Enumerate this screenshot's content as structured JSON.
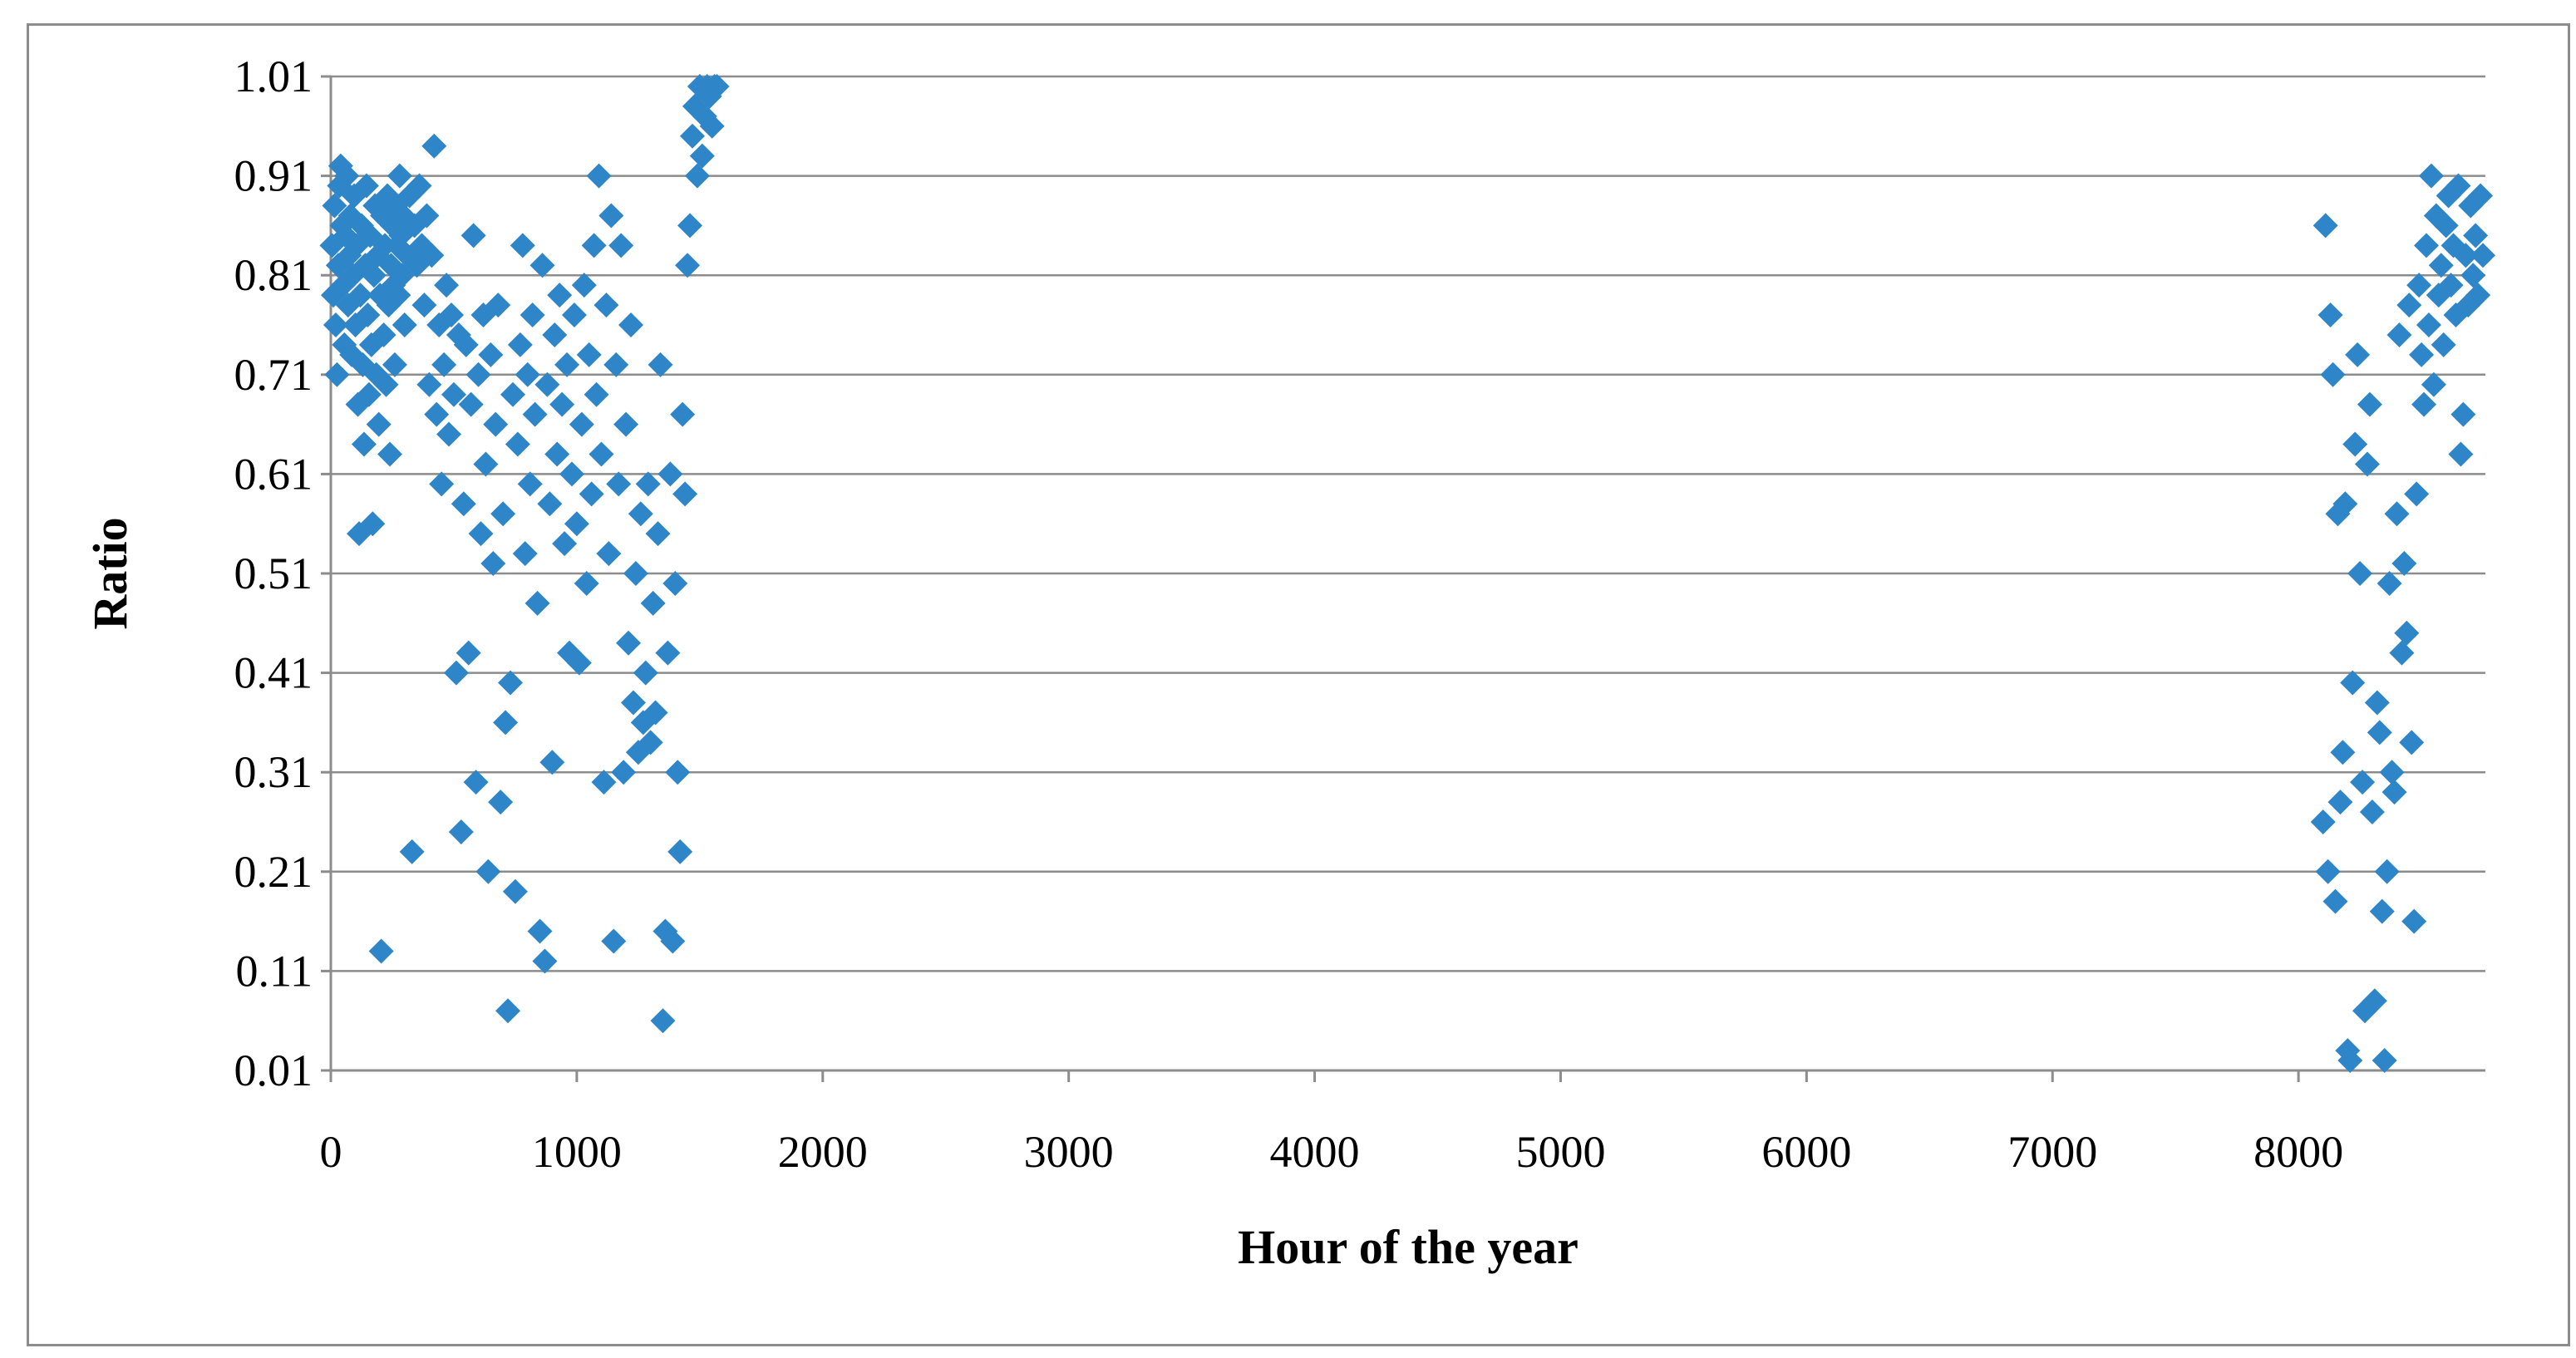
{
  "chart_data": {
    "type": "scatter",
    "xlabel": "Hour of the year",
    "ylabel": "Ratio",
    "xlim": [
      0,
      8760
    ],
    "ylim": [
      0.01,
      1.01
    ],
    "x_ticks": [
      "0",
      "1000",
      "2000",
      "3000",
      "4000",
      "5000",
      "6000",
      "7000",
      "8000"
    ],
    "y_ticks": [
      "0.01",
      "0.11",
      "0.21",
      "0.31",
      "0.41",
      "0.51",
      "0.61",
      "0.71",
      "0.81",
      "0.91",
      "1.01"
    ],
    "grid": "horizontal",
    "legend": "none",
    "marker": "diamond",
    "color": "#2e86c8",
    "series": [
      {
        "points": [
          [
            5,
            0.84
          ],
          [
            10,
            0.79
          ],
          [
            15,
            0.88
          ],
          [
            20,
            0.76
          ],
          [
            25,
            0.71
          ],
          [
            30,
            0.82
          ],
          [
            35,
            0.9
          ],
          [
            40,
            0.92
          ],
          [
            45,
            0.86
          ],
          [
            50,
            0.8
          ],
          [
            55,
            0.74
          ],
          [
            60,
            0.85
          ],
          [
            65,
            0.91
          ],
          [
            70,
            0.78
          ],
          [
            75,
            0.83
          ],
          [
            80,
            0.87
          ],
          [
            85,
            0.73
          ],
          [
            90,
            0.81
          ],
          [
            95,
            0.89
          ],
          [
            100,
            0.76
          ],
          [
            105,
            0.84
          ],
          [
            110,
            0.68
          ],
          [
            115,
            0.55
          ],
          [
            120,
            0.79
          ],
          [
            125,
            0.86
          ],
          [
            130,
            0.72
          ],
          [
            135,
            0.64
          ],
          [
            140,
            0.82
          ],
          [
            145,
            0.9
          ],
          [
            150,
            0.77
          ],
          [
            155,
            0.69
          ],
          [
            160,
            0.85
          ],
          [
            165,
            0.74
          ],
          [
            170,
            0.56
          ],
          [
            175,
            0.81
          ],
          [
            180,
            0.88
          ],
          [
            185,
            0.71
          ],
          [
            190,
            0.83
          ],
          [
            195,
            0.66
          ],
          [
            200,
            0.79
          ],
          [
            205,
            0.13
          ],
          [
            210,
            0.87
          ],
          [
            215,
            0.75
          ],
          [
            220,
            0.84
          ],
          [
            225,
            0.7
          ],
          [
            230,
            0.89
          ],
          [
            235,
            0.78
          ],
          [
            240,
            0.63
          ],
          [
            245,
            0.82
          ],
          [
            250,
            0.86
          ],
          [
            255,
            0.8
          ],
          [
            260,
            0.72
          ],
          [
            265,
            0.88
          ],
          [
            270,
            0.84
          ],
          [
            275,
            0.79
          ],
          [
            280,
            0.91
          ],
          [
            285,
            0.85
          ],
          [
            290,
            0.81
          ],
          [
            295,
            0.87
          ],
          [
            300,
            0.76
          ],
          [
            310,
            0.83
          ],
          [
            320,
            0.89
          ],
          [
            330,
            0.23
          ],
          [
            340,
            0.86
          ],
          [
            350,
            0.82
          ],
          [
            360,
            0.9
          ],
          [
            370,
            0.84
          ],
          [
            380,
            0.78
          ],
          [
            390,
            0.87
          ],
          [
            400,
            0.7
          ],
          [
            410,
            0.83
          ],
          [
            420,
            0.94
          ],
          [
            430,
            0.67
          ],
          [
            440,
            0.76
          ],
          [
            450,
            0.6
          ],
          [
            460,
            0.72
          ],
          [
            470,
            0.8
          ],
          [
            480,
            0.65
          ],
          [
            490,
            0.77
          ],
          [
            500,
            0.69
          ],
          [
            510,
            0.41
          ],
          [
            520,
            0.75
          ],
          [
            530,
            0.25
          ],
          [
            540,
            0.58
          ],
          [
            550,
            0.74
          ],
          [
            560,
            0.43
          ],
          [
            570,
            0.68
          ],
          [
            580,
            0.85
          ],
          [
            590,
            0.3
          ],
          [
            600,
            0.71
          ],
          [
            610,
            0.55
          ],
          [
            620,
            0.77
          ],
          [
            630,
            0.62
          ],
          [
            640,
            0.21
          ],
          [
            650,
            0.73
          ],
          [
            660,
            0.52
          ],
          [
            670,
            0.66
          ],
          [
            680,
            0.78
          ],
          [
            690,
            0.28
          ],
          [
            700,
            0.57
          ],
          [
            710,
            0.36
          ],
          [
            720,
            0.07
          ],
          [
            730,
            0.4
          ],
          [
            740,
            0.69
          ],
          [
            750,
            0.19
          ],
          [
            760,
            0.64
          ],
          [
            770,
            0.74
          ],
          [
            780,
            0.84
          ],
          [
            790,
            0.53
          ],
          [
            800,
            0.71
          ],
          [
            810,
            0.6
          ],
          [
            820,
            0.77
          ],
          [
            830,
            0.67
          ],
          [
            840,
            0.48
          ],
          [
            850,
            0.15
          ],
          [
            860,
            0.82
          ],
          [
            870,
            0.12
          ],
          [
            880,
            0.7
          ],
          [
            890,
            0.58
          ],
          [
            900,
            0.32
          ],
          [
            910,
            0.75
          ],
          [
            920,
            0.63
          ],
          [
            930,
            0.79
          ],
          [
            940,
            0.68
          ],
          [
            950,
            0.54
          ],
          [
            960,
            0.72
          ],
          [
            970,
            0.43
          ],
          [
            980,
            0.61
          ],
          [
            990,
            0.77
          ],
          [
            1000,
            0.56
          ],
          [
            1010,
            0.42
          ],
          [
            1020,
            0.66
          ],
          [
            1030,
            0.8
          ],
          [
            1040,
            0.5
          ],
          [
            1050,
            0.73
          ],
          [
            1060,
            0.59
          ],
          [
            1070,
            0.84
          ],
          [
            1080,
            0.69
          ],
          [
            1090,
            0.91
          ],
          [
            1100,
            0.63
          ],
          [
            1110,
            0.3
          ],
          [
            1120,
            0.78
          ],
          [
            1130,
            0.53
          ],
          [
            1140,
            0.87
          ],
          [
            1150,
            0.14
          ],
          [
            1160,
            0.72
          ],
          [
            1170,
            0.6
          ],
          [
            1180,
            0.84
          ],
          [
            1190,
            0.31
          ],
          [
            1200,
            0.66
          ],
          [
            1210,
            0.44
          ],
          [
            1220,
            0.76
          ],
          [
            1230,
            0.38
          ],
          [
            1240,
            0.51
          ],
          [
            1250,
            0.33
          ],
          [
            1260,
            0.57
          ],
          [
            1270,
            0.36
          ],
          [
            1280,
            0.41
          ],
          [
            1290,
            0.6
          ],
          [
            1300,
            0.34
          ],
          [
            1310,
            0.48
          ],
          [
            1320,
            0.37
          ],
          [
            1330,
            0.55
          ],
          [
            1340,
            0.72
          ],
          [
            1350,
            0.06
          ],
          [
            1360,
            0.15
          ],
          [
            1370,
            0.43
          ],
          [
            1380,
            0.61
          ],
          [
            1390,
            0.14
          ],
          [
            1400,
            0.5
          ],
          [
            1410,
            0.31
          ],
          [
            1420,
            0.23
          ],
          [
            1430,
            0.67
          ],
          [
            1440,
            0.59
          ],
          [
            1450,
            0.82
          ],
          [
            1460,
            0.86
          ],
          [
            1470,
            0.95
          ],
          [
            1480,
            0.98
          ],
          [
            1490,
            0.91
          ],
          [
            1500,
            1.0
          ],
          [
            1510,
            0.93
          ],
          [
            1520,
            0.97
          ],
          [
            1530,
            1.0
          ],
          [
            1540,
            0.99
          ],
          [
            1550,
            0.96
          ],
          [
            1560,
            1.0
          ],
          [
            1570,
            1.0
          ],
          [
            8100,
            0.26
          ],
          [
            8110,
            0.86
          ],
          [
            8120,
            0.21
          ],
          [
            8130,
            0.77
          ],
          [
            8140,
            0.71
          ],
          [
            8150,
            0.18
          ],
          [
            8160,
            0.57
          ],
          [
            8170,
            0.28
          ],
          [
            8180,
            0.33
          ],
          [
            8190,
            0.58
          ],
          [
            8200,
            0.03
          ],
          [
            8210,
            0.02
          ],
          [
            8220,
            0.4
          ],
          [
            8230,
            0.64
          ],
          [
            8240,
            0.73
          ],
          [
            8250,
            0.51
          ],
          [
            8260,
            0.3
          ],
          [
            8270,
            0.07
          ],
          [
            8280,
            0.62
          ],
          [
            8290,
            0.68
          ],
          [
            8300,
            0.27
          ],
          [
            8310,
            0.08
          ],
          [
            8320,
            0.38
          ],
          [
            8330,
            0.35
          ],
          [
            8340,
            0.17
          ],
          [
            8350,
            0.02
          ],
          [
            8360,
            0.21
          ],
          [
            8370,
            0.5
          ],
          [
            8380,
            0.31
          ],
          [
            8390,
            0.29
          ],
          [
            8400,
            0.57
          ],
          [
            8410,
            0.75
          ],
          [
            8420,
            0.43
          ],
          [
            8430,
            0.52
          ],
          [
            8440,
            0.45
          ],
          [
            8450,
            0.78
          ],
          [
            8460,
            0.34
          ],
          [
            8470,
            0.16
          ],
          [
            8480,
            0.59
          ],
          [
            8490,
            0.8
          ],
          [
            8500,
            0.73
          ],
          [
            8510,
            0.68
          ],
          [
            8520,
            0.84
          ],
          [
            8530,
            0.76
          ],
          [
            8540,
            0.91
          ],
          [
            8550,
            0.7
          ],
          [
            8560,
            0.87
          ],
          [
            8570,
            0.79
          ],
          [
            8580,
            0.82
          ],
          [
            8590,
            0.74
          ],
          [
            8600,
            0.86
          ],
          [
            8610,
            0.89
          ],
          [
            8620,
            0.8
          ],
          [
            8630,
            0.84
          ],
          [
            8640,
            0.77
          ],
          [
            8650,
            0.9
          ],
          [
            8660,
            0.63
          ],
          [
            8670,
            0.67
          ],
          [
            8680,
            0.83
          ],
          [
            8690,
            0.78
          ],
          [
            8700,
            0.88
          ],
          [
            8710,
            0.81
          ],
          [
            8720,
            0.85
          ],
          [
            8730,
            0.79
          ],
          [
            8740,
            0.89
          ],
          [
            8750,
            0.83
          ]
        ]
      }
    ]
  }
}
